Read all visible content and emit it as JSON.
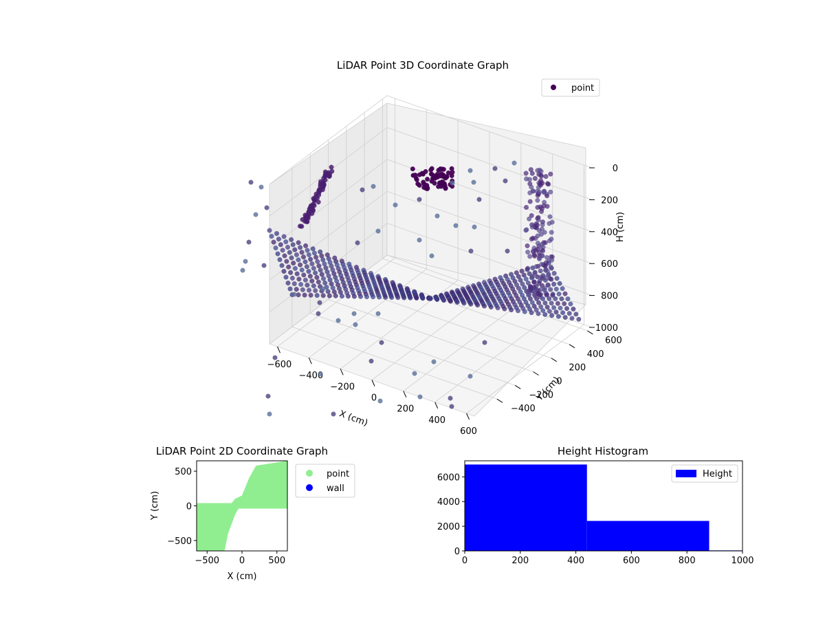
{
  "chart_data": [
    {
      "type": "scatter",
      "projection": "3d",
      "title": "LiDAR Point 3D Coordinate Graph",
      "xlabel": "X (cm)",
      "ylabel": "Y (cm)",
      "zlabel": "H (cm)",
      "xlim": [
        -650,
        650
      ],
      "ylim": [
        -650,
        650
      ],
      "zlim": [
        1000,
        0
      ],
      "xticks": [
        -600,
        -400,
        -200,
        0,
        200,
        400,
        600
      ],
      "yticks": [
        -400,
        -200,
        0,
        200,
        400,
        600
      ],
      "zticks": [
        0,
        200,
        400,
        600,
        800,
        1000
      ],
      "colormap": "viridis",
      "grid": true,
      "legend": {
        "entries": [
          "point"
        ],
        "placement": "top-right"
      },
      "series": [
        {
          "name": "point",
          "description": "radial fan of scan rays from two opposite corners meeting at the centre, plus vertical wall clusters and a floor cluster",
          "clusters": [
            {
              "label": "left wall",
              "x": [
                -650,
                -620
              ],
              "y": [
                -650,
                650
              ],
              "h": [
                60,
                500
              ]
            },
            {
              "label": "right wall",
              "x": [
                560,
                600
              ],
              "y": [
                200,
                650
              ],
              "h": [
                60,
                800
              ]
            },
            {
              "label": "centre floor blob",
              "x": [
                -60,
                60
              ],
              "y": [
                300,
                450
              ],
              "h": [
                100,
                300
              ]
            }
          ]
        }
      ]
    },
    {
      "type": "scatter",
      "title": "LiDAR Point 2D Coordinate Graph",
      "xlabel": "X (cm)",
      "ylabel": "Y (cm)",
      "xlim": [
        -650,
        650
      ],
      "ylim": [
        -650,
        650
      ],
      "xticks": [
        -500,
        0,
        500
      ],
      "yticks": [
        -500,
        0,
        500
      ],
      "legend": {
        "placement": "outside-right"
      },
      "series": [
        {
          "name": "point",
          "color": "#90ee90",
          "region_boundary": {
            "upper_y_at_x": [
              [
                -650,
                40
              ],
              [
                -150,
                40
              ],
              [
                -100,
                100
              ],
              [
                0,
                150
              ],
              [
                100,
                400
              ],
              [
                200,
                580
              ],
              [
                650,
                650
              ]
            ],
            "lower_y_at_x": [
              [
                -650,
                -650
              ],
              [
                -250,
                -650
              ],
              [
                -200,
                -400
              ],
              [
                -100,
                -130
              ],
              [
                -50,
                -40
              ],
              [
                0,
                -40
              ],
              [
                650,
                -40
              ]
            ]
          }
        },
        {
          "name": "wall",
          "color": "#0000ff",
          "points": []
        }
      ]
    },
    {
      "type": "bar",
      "subtype": "histogram",
      "title": "Height Histogram",
      "xlim": [
        0,
        1000
      ],
      "ylim": [
        0,
        7300
      ],
      "xticks": [
        0,
        200,
        400,
        600,
        800,
        1000
      ],
      "yticks": [
        0,
        2000,
        4000,
        6000
      ],
      "legend": {
        "placement": "top-right"
      },
      "series": [
        {
          "name": "Height",
          "color": "#0000ff",
          "bins": [
            {
              "x0": 0,
              "x1": 440,
              "count": 7000
            },
            {
              "x0": 440,
              "x1": 880,
              "count": 2430
            },
            {
              "x0": 880,
              "x1": 1000,
              "count": 40
            }
          ]
        }
      ]
    }
  ]
}
